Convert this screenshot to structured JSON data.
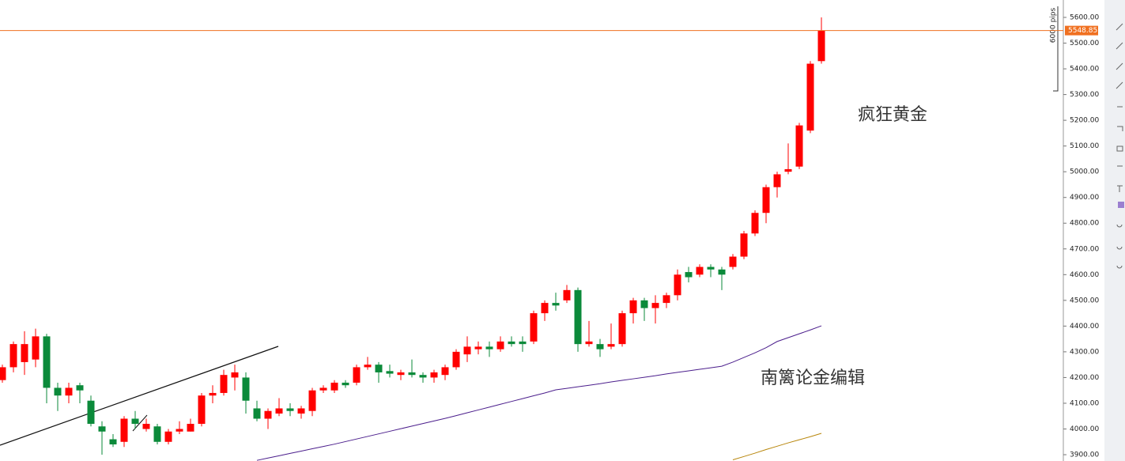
{
  "chart_data": {
    "type": "candlestick",
    "open": [
      4190,
      4240,
      4260,
      4270,
      4360,
      4160,
      4130,
      4170,
      4110,
      4010,
      3960,
      3950,
      4040,
      4000,
      4010,
      3950,
      3990,
      3990,
      4020,
      4130,
      4140,
      4200,
      4200,
      4080,
      4040,
      4060,
      4080,
      4060,
      4070,
      4150,
      4150,
      4180,
      4180,
      4240,
      4250,
      4225,
      4210,
      4220,
      4210,
      4200,
      4210,
      4240,
      4290,
      4310,
      4320,
      4310,
      4340,
      4340,
      4340,
      4450,
      4490,
      4500,
      4540,
      4330,
      4330,
      4320,
      4330,
      4450,
      4500,
      4470,
      4490,
      4520,
      4610,
      4600,
      4630,
      4620,
      4630,
      4670,
      4760,
      4840,
      4940,
      5000,
      5020,
      5160,
      5430
    ],
    "high": [
      4250,
      4340,
      4380,
      4390,
      4370,
      4180,
      4180,
      4180,
      4130,
      4030,
      3980,
      4050,
      4070,
      4040,
      4020,
      4000,
      4030,
      4040,
      4140,
      4170,
      4230,
      4250,
      4220,
      4110,
      4080,
      4120,
      4100,
      4090,
      4160,
      4170,
      4190,
      4190,
      4250,
      4280,
      4260,
      4250,
      4230,
      4270,
      4220,
      4230,
      4250,
      4310,
      4360,
      4340,
      4340,
      4360,
      4360,
      4360,
      4460,
      4500,
      4530,
      4560,
      4550,
      4420,
      4350,
      4410,
      4460,
      4510,
      4510,
      4520,
      4530,
      4620,
      4630,
      4640,
      4640,
      4630,
      4680,
      4770,
      4850,
      4950,
      5000,
      5110,
      5190,
      5430,
      5600
    ],
    "low": [
      4180,
      4220,
      4210,
      4240,
      4100,
      4070,
      4100,
      4100,
      4010,
      3900,
      3930,
      3930,
      4000,
      3990,
      3940,
      3940,
      3980,
      3990,
      4010,
      4100,
      4130,
      4150,
      4060,
      4030,
      4000,
      4050,
      4050,
      4040,
      4050,
      4140,
      4140,
      4160,
      4170,
      4230,
      4180,
      4200,
      4190,
      4200,
      4180,
      4180,
      4190,
      4230,
      4260,
      4290,
      4280,
      4300,
      4320,
      4300,
      4330,
      4420,
      4460,
      4490,
      4300,
      4320,
      4280,
      4310,
      4320,
      4410,
      4420,
      4410,
      4470,
      4500,
      4570,
      4590,
      4590,
      4540,
      4620,
      4660,
      4750,
      4800,
      4900,
      4990,
      5010,
      5150,
      5420
    ],
    "close": [
      4240,
      4330,
      4330,
      4360,
      4160,
      4130,
      4160,
      4150,
      4020,
      3990,
      3940,
      4040,
      4020,
      4020,
      3950,
      3990,
      4000,
      4020,
      4130,
      4140,
      4210,
      4220,
      4110,
      4040,
      4070,
      4080,
      4070,
      4080,
      4150,
      4160,
      4180,
      4170,
      4240,
      4250,
      4220,
      4215,
      4220,
      4210,
      4200,
      4220,
      4240,
      4300,
      4320,
      4320,
      4310,
      4340,
      4330,
      4330,
      4450,
      4490,
      4480,
      4540,
      4330,
      4340,
      4310,
      4330,
      4450,
      4500,
      4470,
      4490,
      4520,
      4600,
      4590,
      4630,
      4620,
      4600,
      4670,
      4760,
      4840,
      4940,
      4990,
      5010,
      5180,
      5420,
      5548.85
    ],
    "up_color": "#ff0000",
    "down_color": "#0b8a3a",
    "series": [
      {
        "color": "#4b1e8c",
        "values": [
          null,
          null,
          null,
          null,
          null,
          null,
          null,
          null,
          null,
          null,
          null,
          null,
          null,
          null,
          null,
          null,
          null,
          null,
          null,
          null,
          null,
          null,
          null,
          3878,
          3887,
          3896,
          3905,
          3914,
          3923,
          3932,
          3941,
          3951,
          3961,
          3971,
          3981,
          3991,
          4001,
          4011,
          4021,
          4031,
          4041,
          4052,
          4063,
          4074,
          4085,
          4096,
          4107,
          4118,
          4129,
          4140,
          4152,
          4158,
          4164,
          4170,
          4176,
          4183,
          4189,
          4195,
          4201,
          4207,
          4214,
          4220,
          4226,
          4232,
          4238,
          4244,
          4260,
          4278,
          4296,
          4316,
          4340,
          4355,
          4370,
          4385,
          4401
        ]
      },
      {
        "color": "#b8860b",
        "values": [
          null,
          null,
          null,
          null,
          null,
          null,
          null,
          null,
          null,
          null,
          null,
          null,
          null,
          null,
          null,
          null,
          null,
          null,
          null,
          null,
          null,
          null,
          null,
          null,
          null,
          null,
          null,
          null,
          null,
          null,
          null,
          null,
          null,
          null,
          null,
          null,
          null,
          null,
          null,
          null,
          null,
          null,
          null,
          null,
          null,
          null,
          null,
          null,
          null,
          null,
          null,
          null,
          null,
          null,
          null,
          null,
          null,
          null,
          null,
          null,
          null,
          null,
          null,
          null,
          null,
          null,
          3880,
          3893,
          3906,
          3920,
          3933,
          3946,
          3958,
          3970,
          3983
        ]
      }
    ],
    "last_price": 5548.85,
    "last_price_color": "#f07020",
    "ylim": [
      3875.5,
      5667.6
    ],
    "yticks": [
      {
        "value": 3900,
        "label": "3900.00"
      },
      {
        "value": 4000,
        "label": "4000.00"
      },
      {
        "value": 4100,
        "label": "4100.00"
      },
      {
        "value": 4200,
        "label": "4200.00"
      },
      {
        "value": 4300,
        "label": "4300.00"
      },
      {
        "value": 4400,
        "label": "4400.00"
      },
      {
        "value": 4500,
        "label": "4500.00"
      },
      {
        "value": 4600,
        "label": "4600.00"
      },
      {
        "value": 4700,
        "label": "4700.00"
      },
      {
        "value": 4800,
        "label": "4800.00"
      },
      {
        "value": 4900,
        "label": "4900.00"
      },
      {
        "value": 5000,
        "label": "5000.00"
      },
      {
        "value": 5100,
        "label": "5100.00"
      },
      {
        "value": 5200,
        "label": "5200.00"
      },
      {
        "value": 5300,
        "label": "5300.00"
      },
      {
        "value": 5400,
        "label": "5400.00"
      },
      {
        "value": 5500,
        "label": "5500.00"
      },
      {
        "value": 5600,
        "label": "5600.00"
      }
    ],
    "annotations": [
      "疯狂黄金",
      "南篱论金编辑",
      "6000 pips"
    ]
  }
}
